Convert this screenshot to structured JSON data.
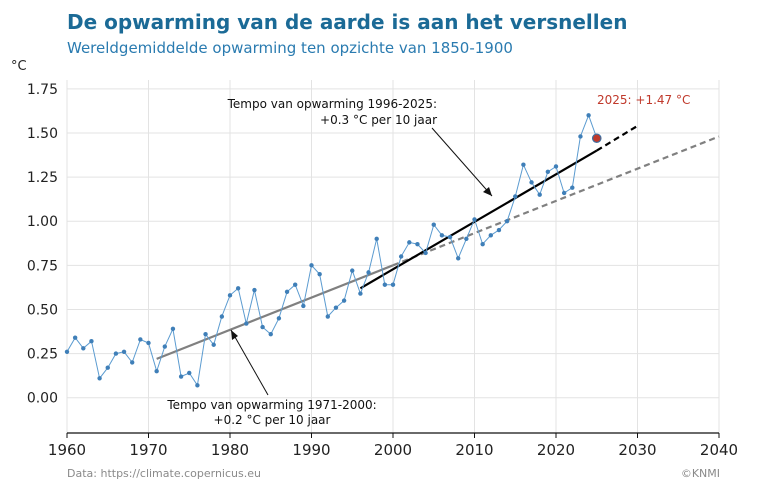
{
  "header": {
    "title": "De opwarming van de aarde is aan het versnellen",
    "subtitle": "Wereldgemiddelde opwarming ten opzichte van 1850-1900"
  },
  "footer": {
    "source": "Data: https://climate.copernicus.eu",
    "credit": "©KNMI"
  },
  "colors": {
    "title": "#1b6a96",
    "series": "#5b9bd0",
    "trend_1971_2000": "#808080",
    "trend_1996_2025": "#000000",
    "highlight": "#c0392b"
  },
  "chart_data": {
    "type": "line",
    "ylabel": "°C",
    "xlim": [
      1960,
      2040
    ],
    "ylim": [
      -0.2,
      1.8
    ],
    "xticks": [
      1960,
      1970,
      1980,
      1990,
      2000,
      2010,
      2020,
      2030,
      2040
    ],
    "yticks": [
      0.0,
      0.25,
      0.5,
      0.75,
      1.0,
      1.25,
      1.5,
      1.75
    ],
    "ytick_labels": [
      "0.00",
      "0.25",
      "0.50",
      "0.75",
      "1.00",
      "1.25",
      "1.50",
      "1.75"
    ],
    "grid": true,
    "series": [
      {
        "x": [
          1960,
          1961,
          1962,
          1963,
          1964,
          1965,
          1966,
          1967,
          1968,
          1969,
          1970,
          1971,
          1972,
          1973,
          1974,
          1975,
          1976,
          1977,
          1978,
          1979,
          1980,
          1981,
          1982,
          1983,
          1984,
          1985,
          1986,
          1987,
          1988,
          1989,
          1990,
          1991,
          1992,
          1993,
          1994,
          1995,
          1996,
          1997,
          1998,
          1999,
          2000,
          2001,
          2002,
          2003,
          2004,
          2005,
          2006,
          2007,
          2008,
          2009,
          2010,
          2011,
          2012,
          2013,
          2014,
          2015,
          2016,
          2017,
          2018,
          2019,
          2020,
          2021,
          2022,
          2023,
          2024,
          2025
        ],
        "values": [
          0.26,
          0.34,
          0.28,
          0.32,
          0.11,
          0.17,
          0.25,
          0.26,
          0.2,
          0.33,
          0.31,
          0.15,
          0.29,
          0.39,
          0.12,
          0.14,
          0.07,
          0.36,
          0.3,
          0.46,
          0.58,
          0.62,
          0.42,
          0.61,
          0.4,
          0.36,
          0.45,
          0.6,
          0.64,
          0.52,
          0.75,
          0.7,
          0.46,
          0.51,
          0.55,
          0.72,
          0.59,
          0.71,
          0.9,
          0.64,
          0.64,
          0.8,
          0.88,
          0.87,
          0.82,
          0.98,
          0.92,
          0.91,
          0.79,
          0.9,
          1.01,
          0.87,
          0.92,
          0.95,
          1.0,
          1.14,
          1.32,
          1.22,
          1.15,
          1.28,
          1.31,
          1.16,
          1.19,
          1.48,
          1.6,
          1.47
        ]
      }
    ],
    "trends": [
      {
        "label": "Tempo van opwarming 1971-2000:",
        "rate": "+0.2 °C per 10 jaar",
        "solid": [
          [
            1971,
            0.22
          ],
          [
            2000,
            0.75
          ]
        ],
        "dashed": [
          [
            2000,
            0.75
          ],
          [
            2040,
            1.48
          ]
        ]
      },
      {
        "label": "Tempo van opwarming 1996-2025:",
        "rate": "+0.3 °C per 10 jaar",
        "solid": [
          [
            1996,
            0.62
          ],
          [
            2025,
            1.4
          ]
        ],
        "dashed": [
          [
            2025,
            1.4
          ],
          [
            2030,
            1.54
          ]
        ]
      }
    ],
    "highlight": {
      "x": 2025,
      "y": 1.47,
      "label": "2025: +1.47 °C"
    }
  }
}
